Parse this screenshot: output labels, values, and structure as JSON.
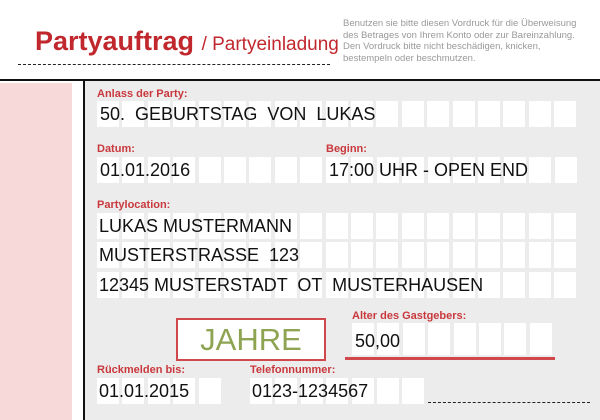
{
  "header": {
    "title": "Partyauftrag",
    "subtitle": "/ Partyeinladung",
    "notice": "Benutzen sie bitte diesen Vordruck für die Überweisung des Betrages von Ihrem Konto oder zur Bareinzahlung. Den Vordruck bitte nicht beschädigen, knicken, bestempeln oder beschmutzen."
  },
  "colors": {
    "accent": "#c0282e",
    "label": "#c9383d",
    "jahre": "#8ea452",
    "panel": "#ececec",
    "strip": "#f7d9da"
  },
  "fields": {
    "anlass": {
      "label": "Anlass der Party:",
      "value": "50.  GEBURTSTAG  VON  LUKAS"
    },
    "datum": {
      "label": "Datum:",
      "value": "01.01.2016"
    },
    "beginn": {
      "label": "Beginn:",
      "value": "17:00 UHR - OPEN END"
    },
    "location": {
      "label": "Partylocation:",
      "lines": [
        "LUKAS MUSTERMANN",
        "MUSTERSTRASSE  123",
        "12345 MUSTERSTADT  OT  MUSTERHAUSEN"
      ]
    },
    "jahre": "JAHRE",
    "alter": {
      "label": "Alter des Gastgebers:",
      "value": "50,00"
    },
    "rueckmelden": {
      "label": "Rückmelden bis:",
      "value": "01.01.2015"
    },
    "telefon": {
      "label": "Telefonnummer:",
      "value": "0123-1234567"
    }
  }
}
